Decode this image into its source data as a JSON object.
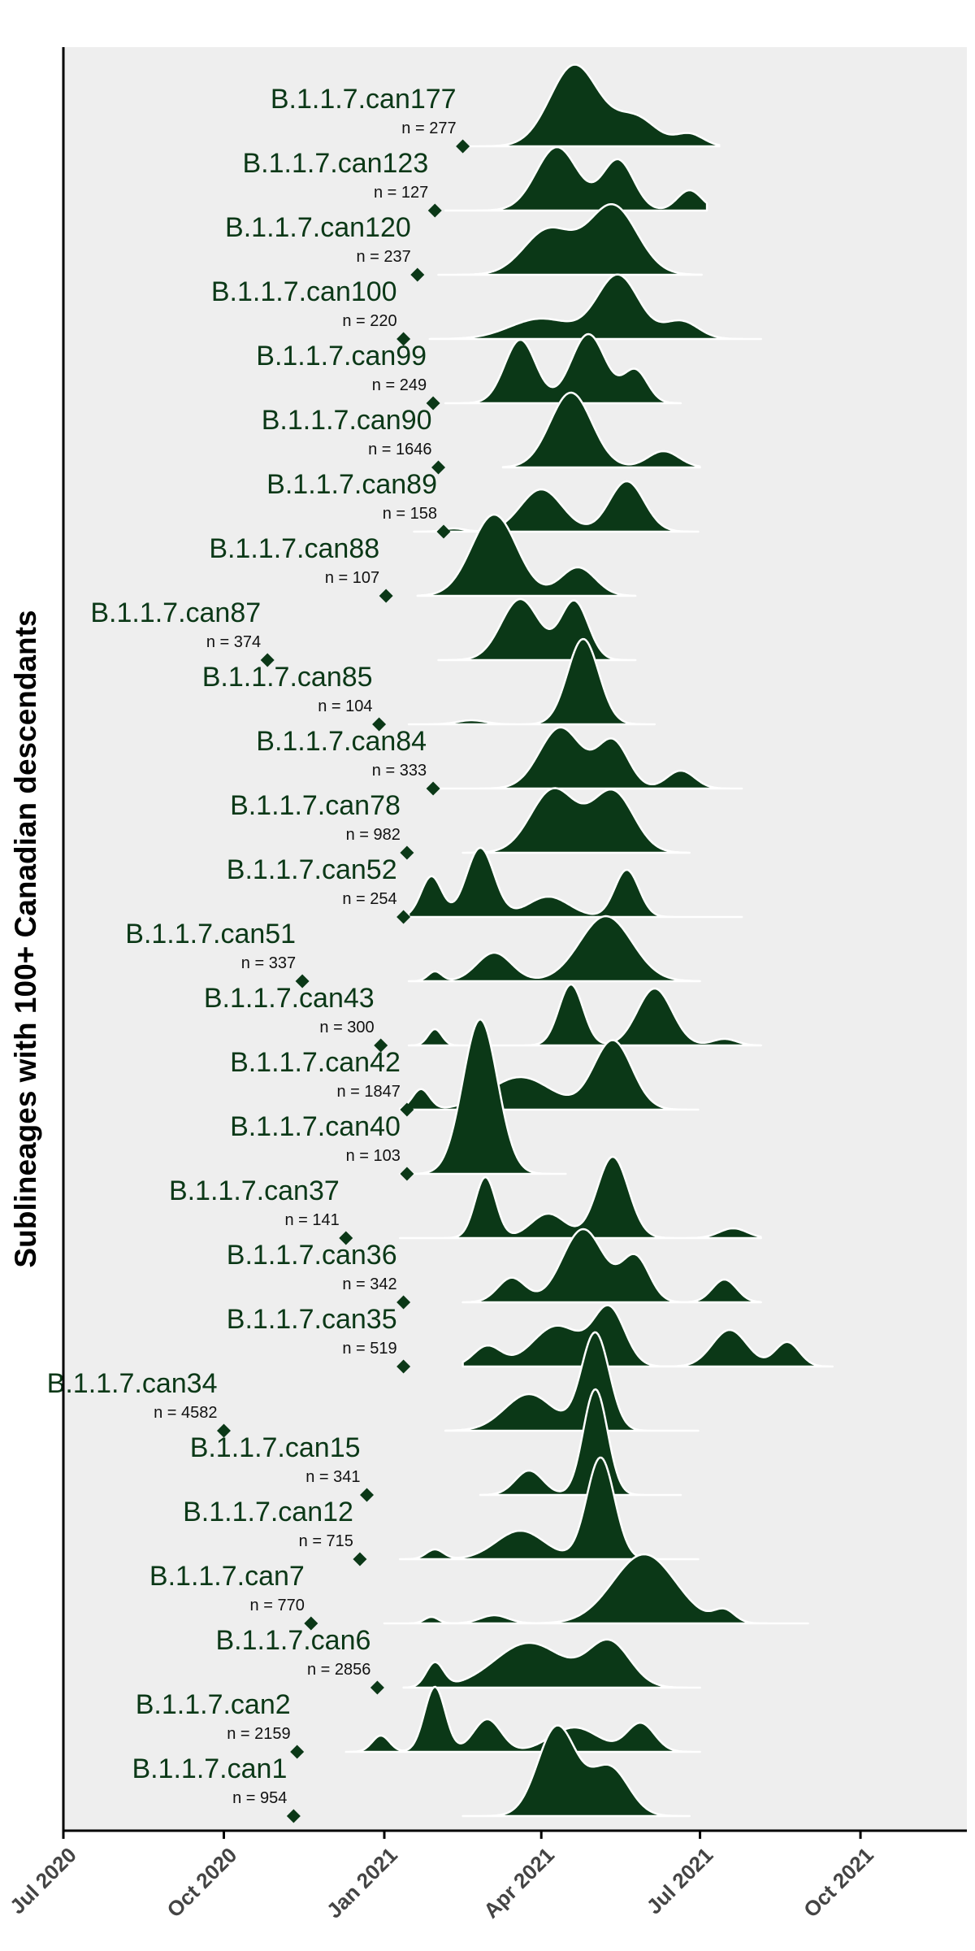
{
  "chart_data": {
    "type": "ridgeline",
    "title": "",
    "ylabel": "Sublineages with 100+ Canadian descendants",
    "xlabel": "",
    "x_ticks": [
      "Jul 2020",
      "Oct 2020",
      "Jan 2021",
      "Apr 2021",
      "Jul 2021",
      "Oct 2021"
    ],
    "x_range": [
      "2020-07-01",
      "2021-12-01"
    ],
    "colors": {
      "fill": "#0b3817",
      "panel": "#eeeeee",
      "outline": "#ffffff",
      "point": "#0b3817"
    },
    "n_prefix": "n = ",
    "series": [
      {
        "name": "B.1.1.7.can177",
        "n": 277,
        "tmrca": "2021-02-15",
        "range": [
          "2021-02-12",
          "2021-07-12"
        ],
        "peaks": [
          {
            "d": "2021-04-20",
            "w": 14,
            "h": 1.0
          },
          {
            "d": "2021-05-25",
            "w": 12,
            "h": 0.35
          },
          {
            "d": "2021-06-25",
            "w": 8,
            "h": 0.15
          }
        ]
      },
      {
        "name": "B.1.1.7.can123",
        "n": 127,
        "tmrca": "2021-01-30",
        "range": [
          "2021-02-05",
          "2021-07-05"
        ],
        "peaks": [
          {
            "d": "2021-04-10",
            "w": 12,
            "h": 0.78
          },
          {
            "d": "2021-05-15",
            "w": 9,
            "h": 0.62
          },
          {
            "d": "2021-06-25",
            "w": 7,
            "h": 0.25
          }
        ]
      },
      {
        "name": "B.1.1.7.can120",
        "n": 237,
        "tmrca": "2021-01-20",
        "range": [
          "2021-02-01",
          "2021-07-02"
        ],
        "peaks": [
          {
            "d": "2021-04-05",
            "w": 14,
            "h": 0.55
          },
          {
            "d": "2021-05-12",
            "w": 14,
            "h": 0.85
          }
        ]
      },
      {
        "name": "B.1.1.7.can100",
        "n": 220,
        "tmrca": "2021-01-12",
        "range": [
          "2021-01-27",
          "2021-08-05"
        ],
        "peaks": [
          {
            "d": "2021-04-01",
            "w": 18,
            "h": 0.25
          },
          {
            "d": "2021-05-15",
            "w": 12,
            "h": 0.78
          },
          {
            "d": "2021-06-20",
            "w": 10,
            "h": 0.22
          }
        ]
      },
      {
        "name": "B.1.1.7.can99",
        "n": 249,
        "tmrca": "2021-01-29",
        "range": [
          "2021-02-05",
          "2021-06-20"
        ],
        "peaks": [
          {
            "d": "2021-03-20",
            "w": 9,
            "h": 0.78
          },
          {
            "d": "2021-04-28",
            "w": 10,
            "h": 0.85
          },
          {
            "d": "2021-05-25",
            "w": 7,
            "h": 0.4
          }
        ]
      },
      {
        "name": "B.1.1.7.can90",
        "n": 1646,
        "tmrca": "2021-02-01",
        "range": [
          "2021-03-10",
          "2021-07-01"
        ],
        "peaks": [
          {
            "d": "2021-04-18",
            "w": 12,
            "h": 0.92
          },
          {
            "d": "2021-06-10",
            "w": 9,
            "h": 0.2
          }
        ]
      },
      {
        "name": "B.1.1.7.can89",
        "n": 158,
        "tmrca": "2021-02-04",
        "range": [
          "2021-01-18",
          "2021-06-30"
        ],
        "peaks": [
          {
            "d": "2021-04-01",
            "w": 12,
            "h": 0.52
          },
          {
            "d": "2021-05-20",
            "w": 10,
            "h": 0.62
          },
          {
            "d": "2021-02-10",
            "w": 6,
            "h": 0.04
          }
        ]
      },
      {
        "name": "B.1.1.7.can88",
        "n": 107,
        "tmrca": "2021-01-02",
        "range": [
          "2021-01-20",
          "2021-05-25"
        ],
        "peaks": [
          {
            "d": "2021-03-05",
            "w": 13,
            "h": 1.0
          },
          {
            "d": "2021-04-22",
            "w": 10,
            "h": 0.35
          }
        ]
      },
      {
        "name": "B.1.1.7.can87",
        "n": 374,
        "tmrca": "2020-10-26",
        "range": [
          "2021-02-01",
          "2021-05-25"
        ],
        "peaks": [
          {
            "d": "2021-03-20",
            "w": 11,
            "h": 0.75
          },
          {
            "d": "2021-04-20",
            "w": 8,
            "h": 0.72
          }
        ]
      },
      {
        "name": "B.1.1.7.can85",
        "n": 104,
        "tmrca": "2020-12-29",
        "range": [
          "2021-01-15",
          "2021-06-05"
        ],
        "peaks": [
          {
            "d": "2021-04-25",
            "w": 9,
            "h": 1.05
          },
          {
            "d": "2021-02-20",
            "w": 8,
            "h": 0.05
          }
        ]
      },
      {
        "name": "B.1.1.7.can84",
        "n": 333,
        "tmrca": "2021-01-29",
        "range": [
          "2021-02-01",
          "2021-07-25"
        ],
        "peaks": [
          {
            "d": "2021-04-12",
            "w": 12,
            "h": 0.75
          },
          {
            "d": "2021-05-12",
            "w": 9,
            "h": 0.58
          },
          {
            "d": "2021-06-20",
            "w": 8,
            "h": 0.22
          }
        ]
      },
      {
        "name": "B.1.1.7.can78",
        "n": 982,
        "tmrca": "2021-01-14",
        "range": [
          "2021-02-15",
          "2021-06-25"
        ],
        "peaks": [
          {
            "d": "2021-04-08",
            "w": 13,
            "h": 0.78
          },
          {
            "d": "2021-05-12",
            "w": 12,
            "h": 0.75
          }
        ]
      },
      {
        "name": "B.1.1.7.can52",
        "n": 254,
        "tmrca": "2021-01-12",
        "range": [
          "2021-01-15",
          "2021-07-25"
        ],
        "peaks": [
          {
            "d": "2021-01-28",
            "w": 6,
            "h": 0.5
          },
          {
            "d": "2021-02-25",
            "w": 8,
            "h": 0.85
          },
          {
            "d": "2021-04-05",
            "w": 12,
            "h": 0.25
          },
          {
            "d": "2021-05-20",
            "w": 7,
            "h": 0.58
          }
        ]
      },
      {
        "name": "B.1.1.7.can51",
        "n": 337,
        "tmrca": "2020-11-15",
        "range": [
          "2021-01-15",
          "2021-07-01"
        ],
        "peaks": [
          {
            "d": "2021-01-30",
            "w": 4,
            "h": 0.12
          },
          {
            "d": "2021-03-05",
            "w": 10,
            "h": 0.35
          },
          {
            "d": "2021-05-08",
            "w": 15,
            "h": 0.8
          }
        ]
      },
      {
        "name": "B.1.1.7.can43",
        "n": 300,
        "tmrca": "2020-12-30",
        "range": [
          "2021-01-15",
          "2021-08-05"
        ],
        "peaks": [
          {
            "d": "2021-01-30",
            "w": 4,
            "h": 0.2
          },
          {
            "d": "2021-04-18",
            "w": 7,
            "h": 0.75
          },
          {
            "d": "2021-06-05",
            "w": 10,
            "h": 0.7
          },
          {
            "d": "2021-07-15",
            "w": 7,
            "h": 0.08
          }
        ]
      },
      {
        "name": "B.1.1.7.can42",
        "n": 1847,
        "tmrca": "2021-01-14",
        "range": [
          "2021-01-10",
          "2021-06-30"
        ],
        "peaks": [
          {
            "d": "2021-01-22",
            "w": 5,
            "h": 0.25
          },
          {
            "d": "2021-03-20",
            "w": 18,
            "h": 0.4
          },
          {
            "d": "2021-05-12",
            "w": 11,
            "h": 0.85
          }
        ]
      },
      {
        "name": "B.1.1.7.can40",
        "n": 103,
        "tmrca": "2021-01-14",
        "range": [
          "2021-01-10",
          "2021-04-15"
        ],
        "peaks": [
          {
            "d": "2021-02-25",
            "w": 10,
            "h": 1.9
          }
        ]
      },
      {
        "name": "B.1.1.7.can37",
        "n": 141,
        "tmrca": "2020-12-10",
        "range": [
          "2021-01-10",
          "2021-08-05"
        ],
        "peaks": [
          {
            "d": "2021-02-28",
            "w": 6,
            "h": 0.75
          },
          {
            "d": "2021-04-05",
            "w": 10,
            "h": 0.3
          },
          {
            "d": "2021-05-12",
            "w": 9,
            "h": 1.0
          },
          {
            "d": "2021-07-20",
            "w": 8,
            "h": 0.12
          }
        ]
      },
      {
        "name": "B.1.1.7.can36",
        "n": 342,
        "tmrca": "2021-01-12",
        "range": [
          "2021-02-15",
          "2021-08-05"
        ],
        "peaks": [
          {
            "d": "2021-03-15",
            "w": 8,
            "h": 0.3
          },
          {
            "d": "2021-04-25",
            "w": 12,
            "h": 0.9
          },
          {
            "d": "2021-05-25",
            "w": 8,
            "h": 0.55
          },
          {
            "d": "2021-07-15",
            "w": 7,
            "h": 0.28
          }
        ]
      },
      {
        "name": "B.1.1.7.can35",
        "n": 519,
        "tmrca": "2021-01-12",
        "range": [
          "2021-02-15",
          "2021-09-15"
        ],
        "peaks": [
          {
            "d": "2021-03-01",
            "w": 8,
            "h": 0.25
          },
          {
            "d": "2021-04-10",
            "w": 14,
            "h": 0.5
          },
          {
            "d": "2021-05-10",
            "w": 9,
            "h": 0.7
          },
          {
            "d": "2021-07-18",
            "w": 10,
            "h": 0.45
          },
          {
            "d": "2021-08-20",
            "w": 7,
            "h": 0.3
          }
        ]
      },
      {
        "name": "B.1.1.7.can34",
        "n": 4582,
        "tmrca": "2020-10-01",
        "range": [
          "2021-02-05",
          "2021-06-30"
        ],
        "peaks": [
          {
            "d": "2021-03-25",
            "w": 14,
            "h": 0.45
          },
          {
            "d": "2021-05-02",
            "w": 8,
            "h": 1.2
          }
        ]
      },
      {
        "name": "B.1.1.7.can15",
        "n": 341,
        "tmrca": "2020-12-22",
        "range": [
          "2021-02-25",
          "2021-06-20"
        ],
        "peaks": [
          {
            "d": "2021-03-25",
            "w": 8,
            "h": 0.3
          },
          {
            "d": "2021-05-02",
            "w": 7,
            "h": 1.3
          }
        ]
      },
      {
        "name": "B.1.1.7.can12",
        "n": 715,
        "tmrca": "2020-12-18",
        "range": [
          "2021-01-10",
          "2021-06-30"
        ],
        "peaks": [
          {
            "d": "2021-01-30",
            "w": 5,
            "h": 0.12
          },
          {
            "d": "2021-03-20",
            "w": 14,
            "h": 0.35
          },
          {
            "d": "2021-05-05",
            "w": 8,
            "h": 1.25
          }
        ]
      },
      {
        "name": "B.1.1.7.can7",
        "n": 770,
        "tmrca": "2020-11-20",
        "range": [
          "2021-01-01",
          "2021-09-01"
        ],
        "peaks": [
          {
            "d": "2021-01-28",
            "w": 4,
            "h": 0.08
          },
          {
            "d": "2021-03-05",
            "w": 8,
            "h": 0.1
          },
          {
            "d": "2021-05-30",
            "w": 18,
            "h": 0.85
          },
          {
            "d": "2021-07-15",
            "w": 6,
            "h": 0.15
          }
        ]
      },
      {
        "name": "B.1.1.7.can6",
        "n": 2856,
        "tmrca": "2020-12-28",
        "range": [
          "2021-01-12",
          "2021-07-01"
        ],
        "peaks": [
          {
            "d": "2021-01-30",
            "w": 5,
            "h": 0.3
          },
          {
            "d": "2021-03-25",
            "w": 20,
            "h": 0.55
          },
          {
            "d": "2021-05-10",
            "w": 12,
            "h": 0.55
          }
        ]
      },
      {
        "name": "B.1.1.7.can2",
        "n": 2159,
        "tmrca": "2020-11-12",
        "range": [
          "2020-12-10",
          "2021-07-01"
        ],
        "peaks": [
          {
            "d": "2020-12-30",
            "w": 5,
            "h": 0.2
          },
          {
            "d": "2021-01-30",
            "w": 6,
            "h": 0.8
          },
          {
            "d": "2021-03-01",
            "w": 8,
            "h": 0.4
          },
          {
            "d": "2021-04-20",
            "w": 14,
            "h": 0.3
          },
          {
            "d": "2021-05-28",
            "w": 8,
            "h": 0.35
          }
        ]
      },
      {
        "name": "B.1.1.7.can1",
        "n": 954,
        "tmrca": "2020-11-10",
        "range": [
          "2021-02-15",
          "2021-06-25"
        ],
        "peaks": [
          {
            "d": "2021-04-10",
            "w": 11,
            "h": 1.1
          },
          {
            "d": "2021-05-10",
            "w": 11,
            "h": 0.6
          }
        ]
      }
    ]
  }
}
